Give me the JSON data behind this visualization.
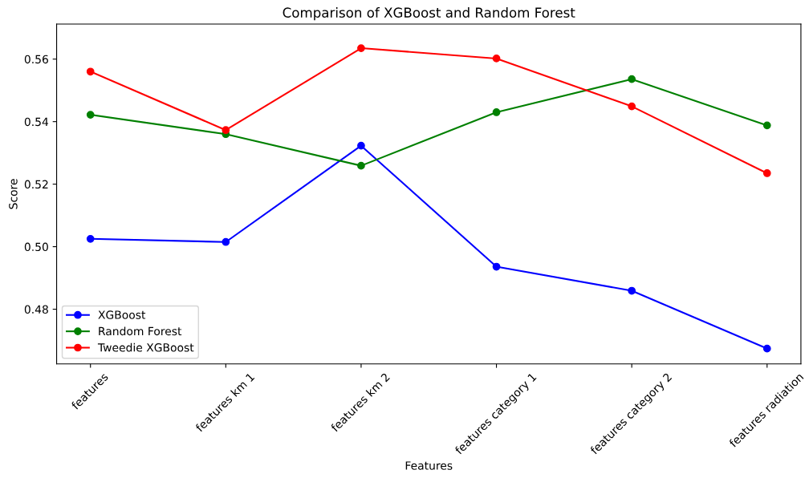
{
  "chart_data": {
    "type": "line",
    "title": "Comparison of XGBoost and Random Forest",
    "xlabel": "Features",
    "ylabel": "Score",
    "categories": [
      "features",
      "features km 1",
      "features km 2",
      "features category 1",
      "features category 2",
      "features radiation"
    ],
    "series": [
      {
        "name": "XGBoost",
        "color": "#0000ff",
        "values": [
          0.5025,
          0.5015,
          0.5323,
          0.4936,
          0.4859,
          0.4674
        ]
      },
      {
        "name": "Random Forest",
        "color": "#008000",
        "values": [
          0.5422,
          0.536,
          0.5259,
          0.543,
          0.5536,
          0.5388
        ]
      },
      {
        "name": "Tweedie XGBoost",
        "color": "#ff0000",
        "values": [
          0.556,
          0.5373,
          0.5635,
          0.5602,
          0.5449,
          0.5235
        ]
      }
    ],
    "ylim": [
      0.4625,
      0.5712
    ],
    "yticks": [
      {
        "value": 0.48,
        "label": "0.48"
      },
      {
        "value": 0.5,
        "label": "0.50"
      },
      {
        "value": 0.52,
        "label": "0.52"
      },
      {
        "value": 0.54,
        "label": "0.54"
      },
      {
        "value": 0.56,
        "label": "0.56"
      }
    ],
    "marker": "circle",
    "line_style": "solid",
    "legend": "bottom left",
    "grid": false
  }
}
